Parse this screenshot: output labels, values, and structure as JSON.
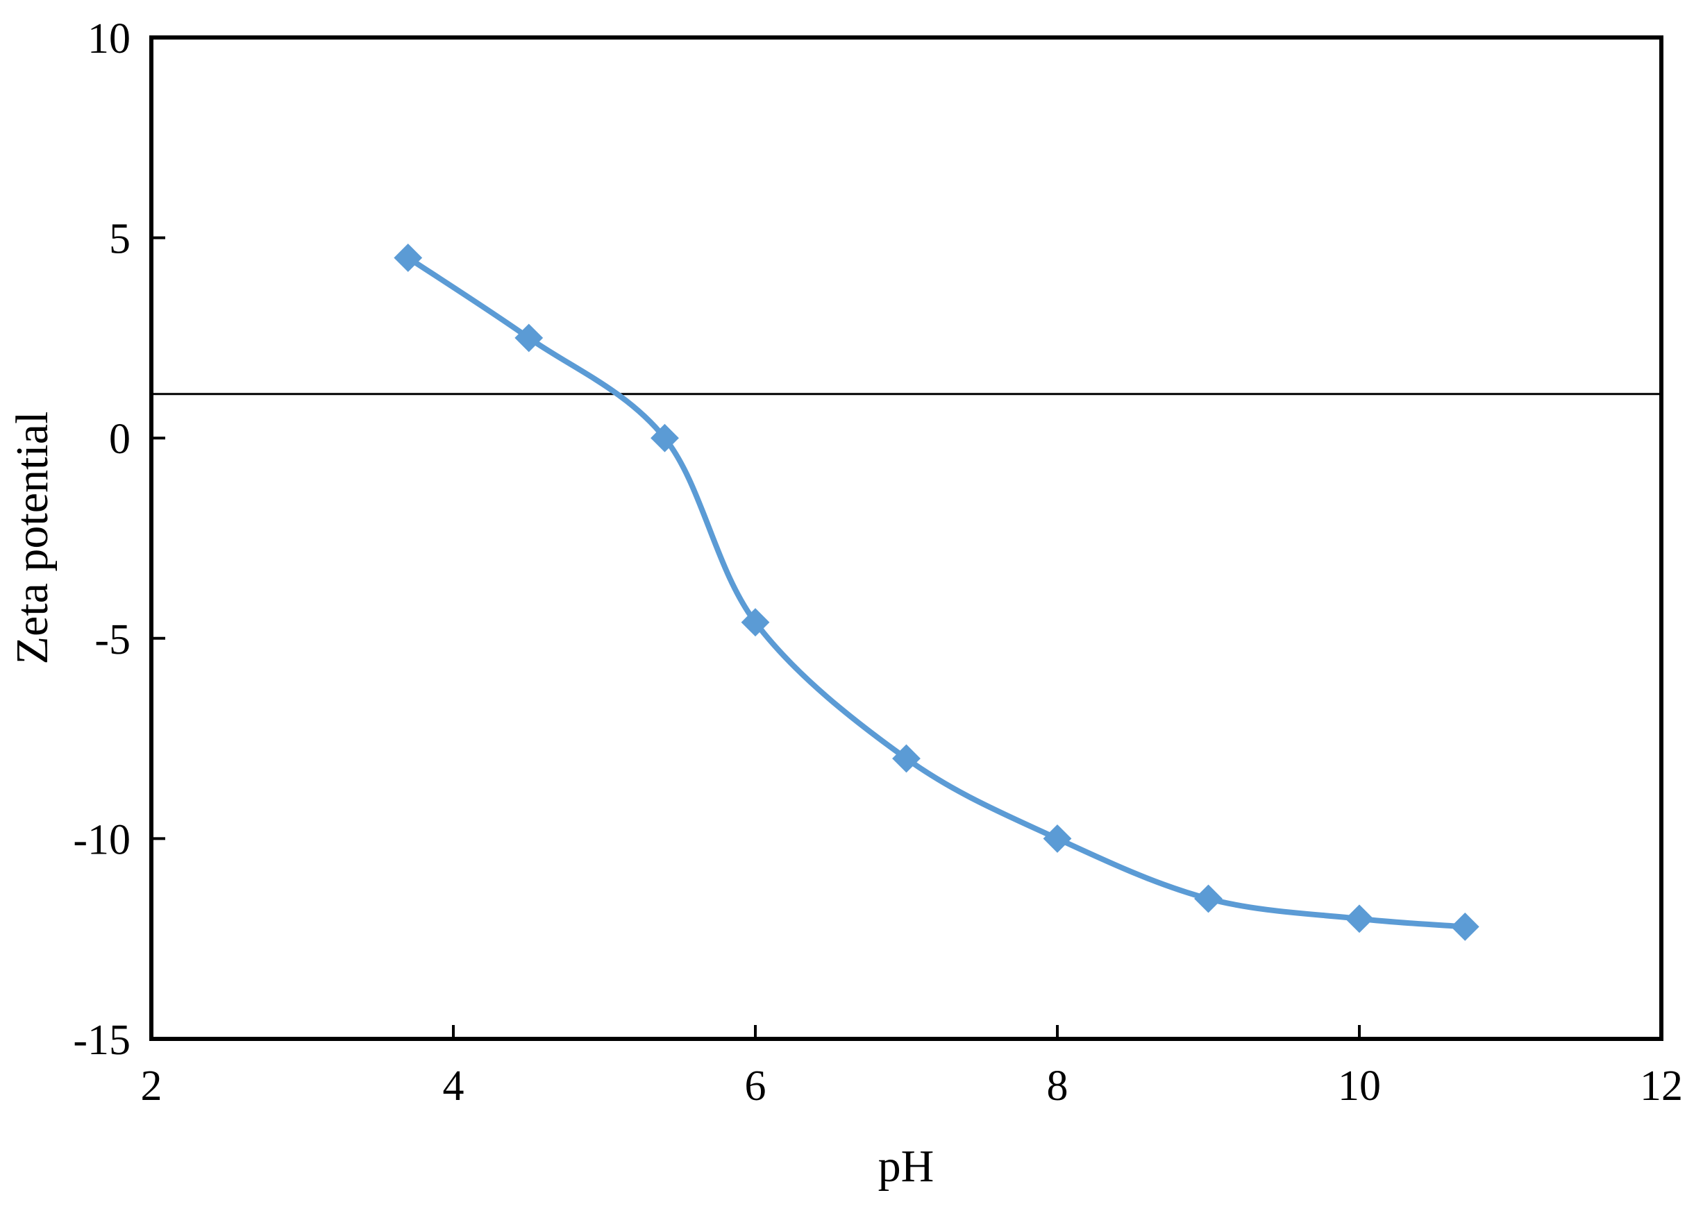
{
  "chart_data": {
    "type": "line",
    "title": "",
    "xlabel": "pH",
    "ylabel": "Zeta potential",
    "xlim": [
      2,
      12
    ],
    "ylim": [
      -15,
      10
    ],
    "xticks": [
      2,
      4,
      6,
      8,
      10,
      12
    ],
    "yticks": [
      10,
      5,
      0,
      -5,
      -10,
      -15
    ],
    "grid": false,
    "legend": "none",
    "smooth": true,
    "reference_line": {
      "y": 1.1
    },
    "series": [
      {
        "color": "#5b9bd5",
        "marker": "diamond",
        "x": [
          3.7,
          4.5,
          5.4,
          6.0,
          7.0,
          8.0,
          9.0,
          10.0,
          10.7
        ],
        "y": [
          4.5,
          2.5,
          0.0,
          -4.6,
          -8.0,
          -10.0,
          -11.5,
          -12.0,
          -12.2
        ]
      }
    ],
    "colors": {
      "axis": "#000000",
      "reference": "#000000",
      "series": "#5b9bd5"
    }
  }
}
